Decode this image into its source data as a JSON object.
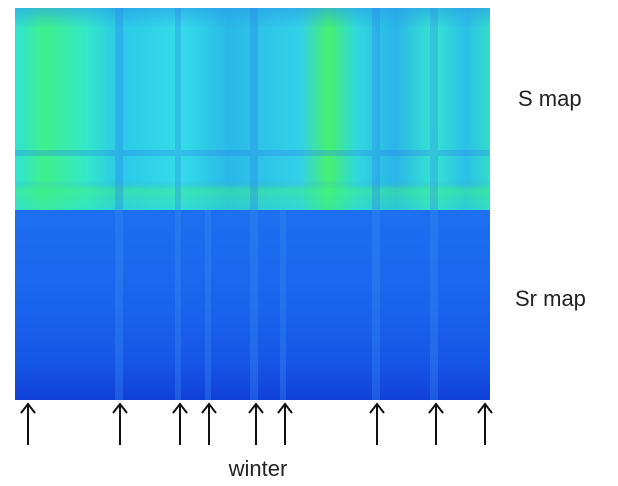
{
  "labels": {
    "s_map": "S map",
    "sr_map": "Sr map",
    "winter": "winter"
  }
}
